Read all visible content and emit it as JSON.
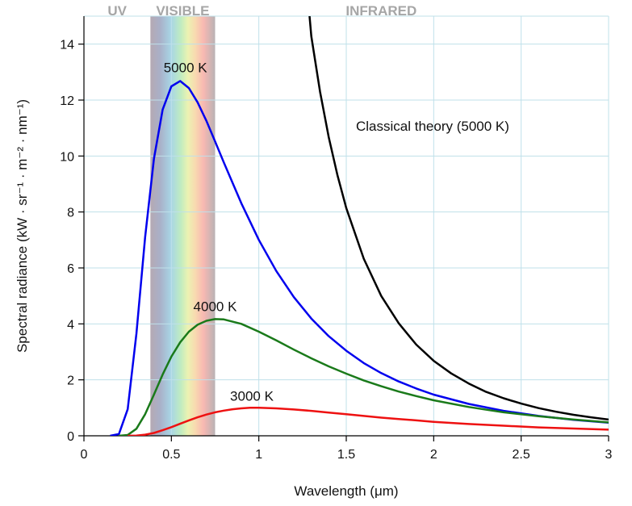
{
  "chart_data": {
    "type": "line",
    "title": "",
    "xlabel": "Wavelength (μm)",
    "ylabel": "Spectral radiance (kW · sr⁻¹ · m⁻² · nm⁻¹)",
    "xlim": [
      0,
      3
    ],
    "ylim": [
      0,
      15
    ],
    "grid": true,
    "x_ticks": [
      {
        "value": 0,
        "label": "0"
      },
      {
        "value": 0.5,
        "label": "0.5"
      },
      {
        "value": 1,
        "label": "1"
      },
      {
        "value": 1.5,
        "label": "1.5"
      },
      {
        "value": 2,
        "label": "2"
      },
      {
        "value": 2.5,
        "label": "2.5"
      },
      {
        "value": 3,
        "label": "3"
      }
    ],
    "y_ticks": [
      {
        "value": 0,
        "label": "0"
      },
      {
        "value": 2,
        "label": "2"
      },
      {
        "value": 4,
        "label": "4"
      },
      {
        "value": 6,
        "label": "6"
      },
      {
        "value": 8,
        "label": "8"
      },
      {
        "value": 10,
        "label": "10"
      },
      {
        "value": 12,
        "label": "12"
      },
      {
        "value": 14,
        "label": "14"
      }
    ],
    "regions": [
      {
        "label": "UV",
        "x_center": 0.19
      },
      {
        "label": "VISIBLE",
        "x_range": [
          0.38,
          0.75
        ]
      },
      {
        "label": "INFRARED",
        "x_center": 1.7
      }
    ],
    "series": [
      {
        "name": "5000 K",
        "color": "#0000ee",
        "label_at": [
          0.58,
          13.0
        ],
        "points": [
          [
            0.15,
            0.0
          ],
          [
            0.2,
            0.06
          ],
          [
            0.25,
            0.95
          ],
          [
            0.3,
            3.65
          ],
          [
            0.35,
            7.1
          ],
          [
            0.4,
            9.9
          ],
          [
            0.45,
            11.66
          ],
          [
            0.5,
            12.49
          ],
          [
            0.55,
            12.68
          ],
          [
            0.6,
            12.43
          ],
          [
            0.65,
            11.92
          ],
          [
            0.7,
            11.26
          ],
          [
            0.75,
            10.52
          ],
          [
            0.8,
            9.77
          ],
          [
            0.9,
            8.31
          ],
          [
            1.0,
            7.0
          ],
          [
            1.1,
            5.89
          ],
          [
            1.2,
            4.96
          ],
          [
            1.3,
            4.19
          ],
          [
            1.4,
            3.56
          ],
          [
            1.5,
            3.04
          ],
          [
            1.6,
            2.6
          ],
          [
            1.7,
            2.24
          ],
          [
            1.8,
            1.94
          ],
          [
            1.9,
            1.69
          ],
          [
            2.0,
            1.47
          ],
          [
            2.2,
            1.14
          ],
          [
            2.4,
            0.89
          ],
          [
            2.6,
            0.71
          ],
          [
            2.8,
            0.57
          ],
          [
            3.0,
            0.47
          ]
        ]
      },
      {
        "name": "4000 K",
        "color": "#1a7a1a",
        "label_at": [
          0.75,
          4.45
        ],
        "points": [
          [
            0.2,
            0.0
          ],
          [
            0.25,
            0.03
          ],
          [
            0.3,
            0.25
          ],
          [
            0.35,
            0.77
          ],
          [
            0.4,
            1.47
          ],
          [
            0.45,
            2.19
          ],
          [
            0.5,
            2.83
          ],
          [
            0.55,
            3.34
          ],
          [
            0.6,
            3.72
          ],
          [
            0.65,
            3.97
          ],
          [
            0.7,
            4.11
          ],
          [
            0.75,
            4.17
          ],
          [
            0.8,
            4.16
          ],
          [
            0.9,
            4.0
          ],
          [
            1.0,
            3.72
          ],
          [
            1.1,
            3.41
          ],
          [
            1.2,
            3.08
          ],
          [
            1.3,
            2.77
          ],
          [
            1.4,
            2.48
          ],
          [
            1.5,
            2.22
          ],
          [
            1.6,
            1.98
          ],
          [
            1.7,
            1.77
          ],
          [
            1.8,
            1.58
          ],
          [
            1.9,
            1.42
          ],
          [
            2.0,
            1.27
          ],
          [
            2.2,
            1.03
          ],
          [
            2.4,
            0.84
          ],
          [
            2.6,
            0.7
          ],
          [
            2.8,
            0.58
          ],
          [
            3.0,
            0.48
          ]
        ]
      },
      {
        "name": "3000 K",
        "color": "#ee1111",
        "label_at": [
          0.96,
          1.25
        ],
        "points": [
          [
            0.25,
            0.0
          ],
          [
            0.3,
            0.01
          ],
          [
            0.35,
            0.04
          ],
          [
            0.4,
            0.1
          ],
          [
            0.45,
            0.2
          ],
          [
            0.5,
            0.31
          ],
          [
            0.55,
            0.43
          ],
          [
            0.6,
            0.55
          ],
          [
            0.65,
            0.66
          ],
          [
            0.7,
            0.76
          ],
          [
            0.75,
            0.84
          ],
          [
            0.8,
            0.9
          ],
          [
            0.85,
            0.95
          ],
          [
            0.9,
            0.98
          ],
          [
            0.95,
            1.0
          ],
          [
            1.0,
            1.0
          ],
          [
            1.1,
            0.98
          ],
          [
            1.2,
            0.94
          ],
          [
            1.3,
            0.89
          ],
          [
            1.4,
            0.83
          ],
          [
            1.5,
            0.77
          ],
          [
            1.6,
            0.71
          ],
          [
            1.7,
            0.65
          ],
          [
            1.8,
            0.6
          ],
          [
            1.9,
            0.55
          ],
          [
            2.0,
            0.5
          ],
          [
            2.2,
            0.42
          ],
          [
            2.4,
            0.36
          ],
          [
            2.6,
            0.3
          ],
          [
            2.8,
            0.26
          ],
          [
            3.0,
            0.22
          ]
        ]
      },
      {
        "name": "Classical theory (5000 K)",
        "color": "#000000",
        "label_at": [
          1.5,
          10.9
        ],
        "points": [
          [
            1.29,
            15.0
          ],
          [
            1.3,
            14.28
          ],
          [
            1.35,
            12.3
          ],
          [
            1.4,
            10.67
          ],
          [
            1.45,
            9.3
          ],
          [
            1.5,
            8.14
          ],
          [
            1.6,
            6.33
          ],
          [
            1.7,
            5.0
          ],
          [
            1.8,
            4.02
          ],
          [
            1.9,
            3.26
          ],
          [
            2.0,
            2.68
          ],
          [
            2.1,
            2.23
          ],
          [
            2.2,
            1.87
          ],
          [
            2.3,
            1.57
          ],
          [
            2.4,
            1.34
          ],
          [
            2.5,
            1.15
          ],
          [
            2.6,
            0.99
          ],
          [
            2.7,
            0.86
          ],
          [
            2.8,
            0.75
          ],
          [
            2.9,
            0.66
          ],
          [
            3.0,
            0.58
          ]
        ]
      }
    ]
  }
}
